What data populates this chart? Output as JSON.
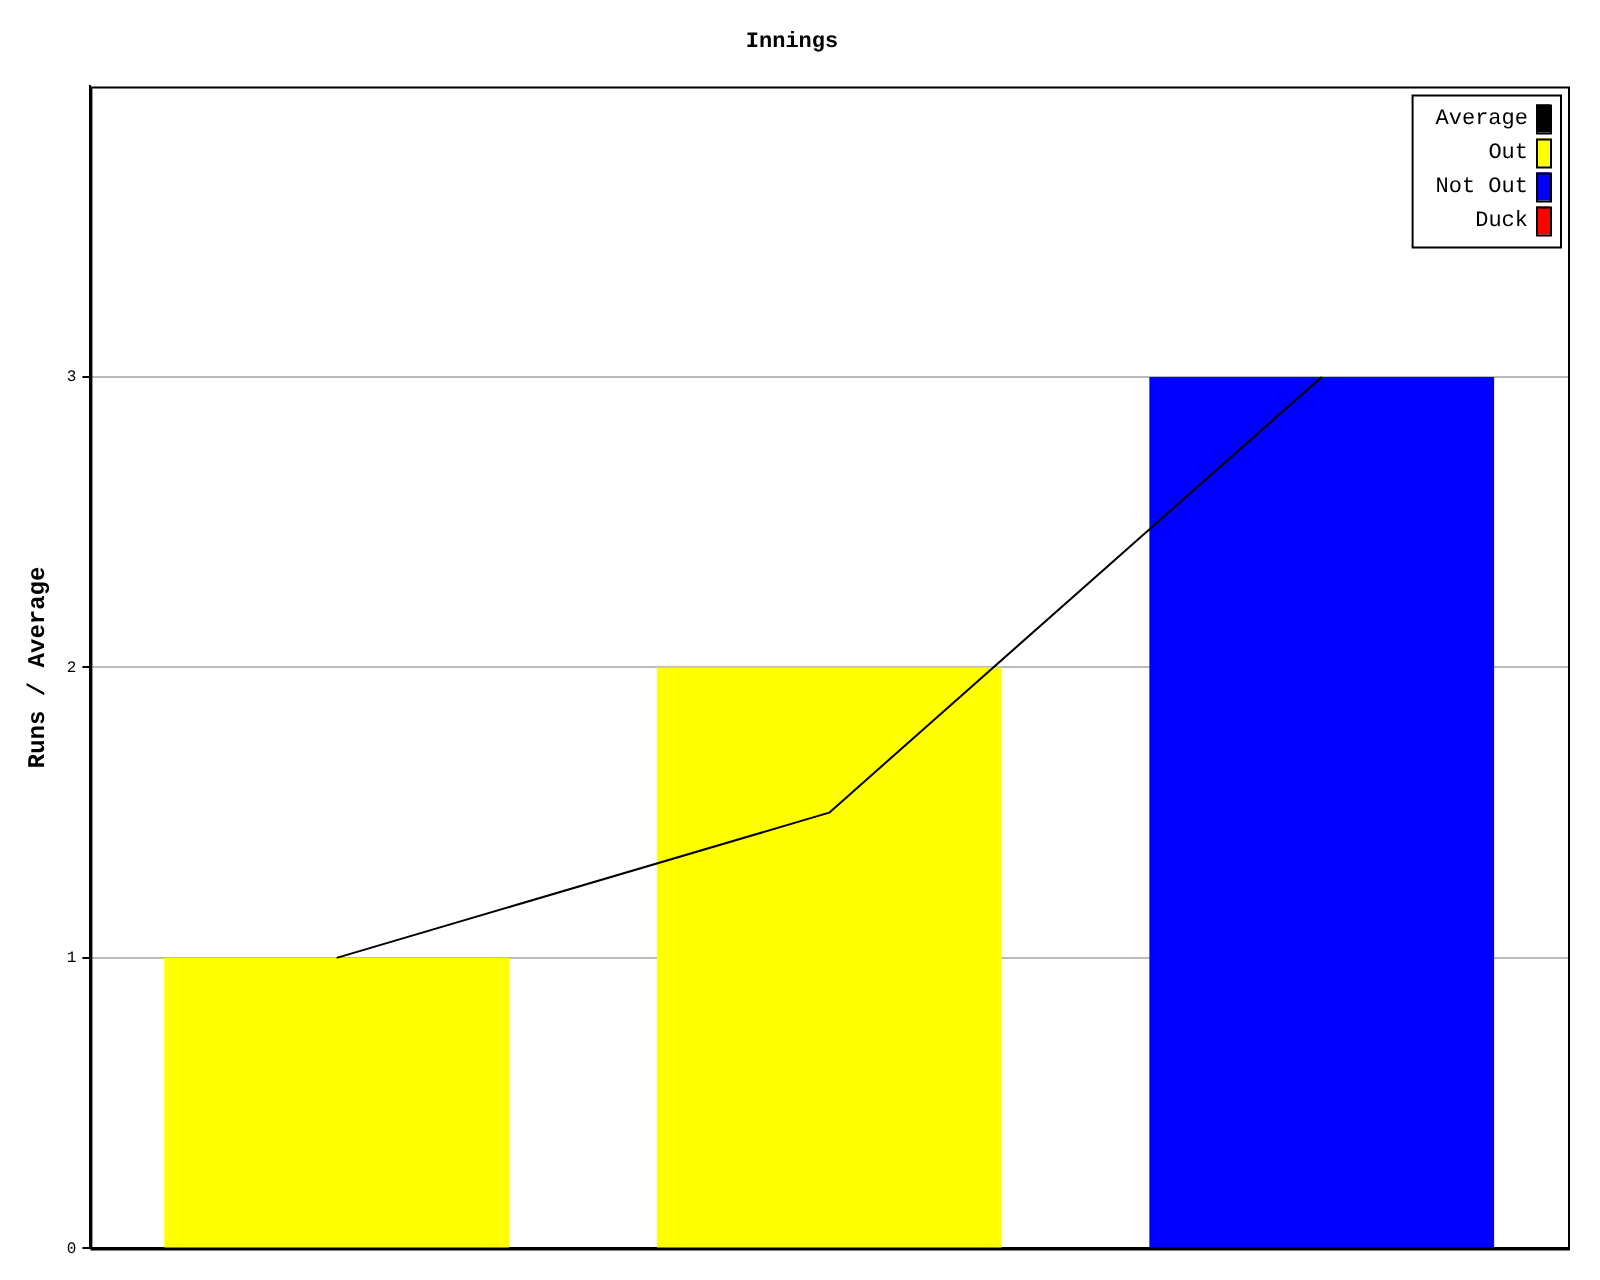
{
  "chart_data": {
    "type": "bar",
    "title": "Innings",
    "ylabel": "Runs / Average",
    "categories": [
      null,
      null,
      null
    ],
    "series": [
      {
        "name": "Average",
        "type": "line",
        "color": "#000000",
        "values": [
          1,
          1.5,
          3
        ]
      },
      {
        "name": "Out",
        "color": "#ffff00",
        "values": [
          1,
          2,
          null
        ]
      },
      {
        "name": "Not Out",
        "color": "#0000ff",
        "values": [
          null,
          null,
          3
        ]
      },
      {
        "name": "Duck",
        "color": "#ff0000",
        "values": [
          null,
          null,
          null
        ]
      }
    ],
    "ylim": [
      0,
      4
    ],
    "yticks": [
      0,
      1,
      2,
      3
    ],
    "grid": "y",
    "legend": "top right",
    "marker": "none"
  }
}
